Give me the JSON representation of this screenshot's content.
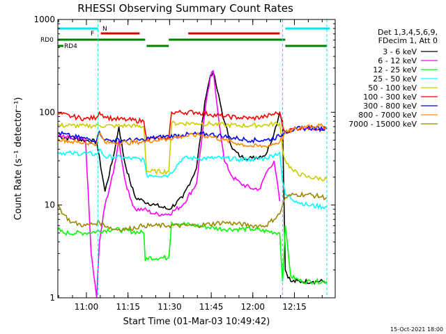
{
  "chart_data": {
    "type": "line",
    "title": "RHESSI Observing Summary Count Rates",
    "xlabel": "Start Time (01-Mar-03 10:49:42)",
    "ylabel": "Count Rate (s⁻¹ detector⁻¹)",
    "ylim": [
      1,
      1000
    ],
    "yscale": "log",
    "xlim_minutes_after_start": [
      0,
      100
    ],
    "x_tick_labels": [
      "11:00",
      "11:15",
      "11:30",
      "11:45",
      "12:00",
      "12:15"
    ],
    "x_tick_minutes": [
      10.3,
      25.3,
      40.3,
      55.3,
      70.3,
      85.3
    ],
    "y_tick_labels": [
      "1",
      "10",
      "100",
      "1000"
    ],
    "y_tick_values": [
      1,
      10,
      100,
      1000
    ],
    "grid": false,
    "legend_position": "right",
    "legend_header": [
      "Det 1,3,4,5,6,9,",
      "FDecim 1, Att 0"
    ],
    "flags": {
      "N": {
        "label": "N",
        "color": "#00e5ee",
        "intervals": [
          [
            0,
            14.5
          ],
          [
            82,
            98
          ]
        ]
      },
      "F": {
        "label": "F",
        "color": "#e00000",
        "intervals": [
          [
            15.5,
            29.5
          ],
          [
            47,
            80
          ]
        ]
      },
      "RD0": {
        "label": "RD0",
        "color": "#008000",
        "intervals": [
          [
            0,
            31.5
          ],
          [
            40,
            82
          ]
        ]
      },
      "RD4": {
        "label": "RD4",
        "color": "#008000",
        "intervals": [
          [
            0,
            2
          ],
          [
            32,
            40
          ],
          [
            82,
            97
          ]
        ]
      }
    },
    "vlines_minutes": [
      0,
      14.5,
      81,
      97
    ],
    "series": [
      {
        "name": "3 - 6 keV",
        "color": "#000000",
        "x": [
          0,
          5,
          10,
          14,
          17,
          20,
          22,
          24,
          26,
          28,
          31,
          35,
          40,
          45,
          50,
          53,
          55,
          56,
          57,
          60,
          63,
          66,
          70,
          75,
          78,
          80,
          81,
          82,
          84,
          88,
          92,
          97
        ],
        "y": [
          55,
          52,
          50,
          48,
          14,
          33,
          70,
          30,
          18,
          12,
          11,
          10,
          9,
          12,
          25,
          130,
          250,
          270,
          200,
          80,
          40,
          33,
          32,
          35,
          60,
          100,
          80,
          2,
          1.5,
          1.5,
          1.5,
          1.5
        ]
      },
      {
        "name": "6 - 12 keV",
        "color": "#ff00ff",
        "x": [
          0,
          5,
          10,
          12,
          14,
          15,
          17,
          20,
          22,
          24,
          26,
          28,
          31,
          35,
          40,
          45,
          50,
          53,
          55,
          56,
          57,
          60,
          63,
          66,
          70,
          73,
          75,
          78,
          80
        ],
        "y": [
          55,
          52,
          50,
          3,
          1,
          4,
          10,
          22,
          50,
          20,
          12,
          9,
          9,
          8,
          8,
          10,
          17,
          100,
          240,
          280,
          150,
          30,
          20,
          17,
          15,
          15,
          22,
          30,
          11
        ]
      },
      {
        "name": "12 - 25 keV",
        "color": "#00ff00",
        "x": [
          0,
          2,
          10,
          20,
          31,
          31.5,
          32,
          40,
          41,
          50,
          60,
          70,
          80,
          81,
          82,
          84,
          88,
          97
        ],
        "y": [
          5.5,
          5,
          5,
          5.5,
          5,
          2.5,
          2.7,
          2.7,
          6.5,
          6,
          5.5,
          5.5,
          5,
          1.5,
          6,
          1.7,
          1.5,
          1.5
        ]
      },
      {
        "name": "25 - 50 keV",
        "color": "#00ffff",
        "x": [
          0,
          5,
          10,
          14,
          15,
          17,
          20,
          25,
          31,
          32,
          40,
          45,
          50,
          55,
          60,
          65,
          70,
          75,
          80,
          81,
          82,
          86,
          90,
          97
        ],
        "y": [
          37,
          36,
          36,
          35,
          40,
          33,
          33,
          32,
          31,
          21,
          21,
          32,
          32,
          32,
          32,
          31,
          31,
          32,
          37,
          18,
          13,
          11,
          10,
          9.5
        ]
      },
      {
        "name": "50 - 100 keV",
        "color": "#cccc00",
        "x": [
          0,
          5,
          10,
          15,
          20,
          25,
          31,
          32,
          40,
          41,
          50,
          55,
          60,
          65,
          70,
          75,
          80,
          81,
          82,
          85,
          90,
          97
        ],
        "y": [
          72,
          72,
          71,
          72,
          71,
          72,
          70,
          23,
          23,
          76,
          76,
          75,
          73,
          72,
          72,
          73,
          76,
          40,
          30,
          23,
          20,
          19
        ]
      },
      {
        "name": "100 - 300 keV",
        "color": "#ff0000",
        "x": [
          0,
          5,
          10,
          14,
          15,
          17,
          20,
          25,
          31,
          32,
          40,
          41,
          50,
          55,
          60,
          65,
          70,
          75,
          80,
          81,
          82,
          86,
          90,
          97
        ],
        "y": [
          97,
          90,
          85,
          88,
          100,
          90,
          85,
          83,
          80,
          52,
          52,
          100,
          100,
          95,
          90,
          88,
          86,
          90,
          100,
          70,
          62,
          67,
          68,
          67
        ]
      },
      {
        "name": "300 - 800 keV",
        "color": "#0000ff",
        "x": [
          0,
          5,
          10,
          14,
          15,
          17,
          20,
          25,
          31,
          32,
          40,
          45,
          50,
          55,
          60,
          65,
          70,
          75,
          80,
          82,
          86,
          90,
          97
        ],
        "y": [
          60,
          55,
          52,
          50,
          62,
          50,
          50,
          50,
          50,
          52,
          55,
          57,
          58,
          58,
          55,
          52,
          50,
          50,
          55,
          62,
          66,
          68,
          66
        ]
      },
      {
        "name": "800 - 7000 keV",
        "color": "#ff8800",
        "x": [
          0,
          5,
          10,
          14,
          15,
          17,
          20,
          25,
          31,
          32,
          40,
          45,
          50,
          55,
          60,
          65,
          70,
          75,
          80,
          82,
          86,
          90,
          97
        ],
        "y": [
          52,
          48,
          47,
          46,
          60,
          47,
          47,
          47,
          48,
          49,
          52,
          55,
          57,
          55,
          50,
          46,
          43,
          43,
          48,
          60,
          66,
          72,
          70
        ]
      },
      {
        "name": "7000 - 15000 keV",
        "color": "#998800",
        "x": [
          0,
          2,
          5,
          10,
          15,
          20,
          25,
          31,
          40,
          50,
          60,
          70,
          75,
          80,
          81,
          82,
          85,
          90,
          97
        ],
        "y": [
          10,
          8,
          6.5,
          6,
          6.5,
          5.5,
          5.5,
          6,
          6,
          6,
          6.5,
          6,
          6,
          8,
          10,
          12,
          13,
          13,
          12
        ]
      }
    ],
    "footer_timestamp": "15-Oct-2021 18:00"
  }
}
